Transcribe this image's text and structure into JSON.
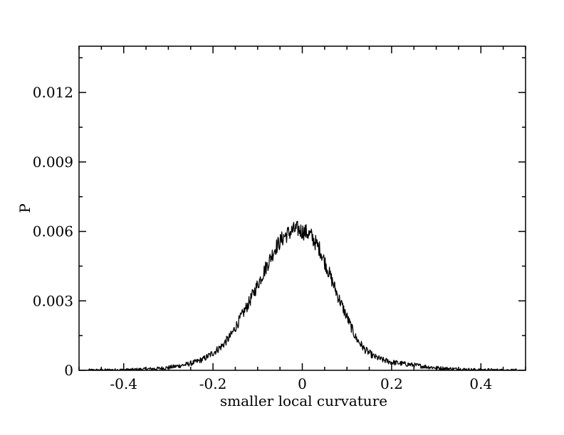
{
  "chart_data": {
    "type": "line",
    "title": "",
    "xlabel": "smaller local curvature",
    "ylabel": "P",
    "xlim": [
      -0.5,
      0.5
    ],
    "ylim": [
      0,
      0.014
    ],
    "xticks": [
      -0.4,
      -0.2,
      0,
      0.2,
      0.4
    ],
    "xtick_labels": [
      "-0.4",
      "-0.2",
      "0",
      "0.2",
      "0.4"
    ],
    "yticks": [
      0,
      0.003,
      0.006,
      0.009,
      0.012
    ],
    "ytick_labels": [
      "0",
      "0.003",
      "0.006",
      "0.009",
      "0.012"
    ],
    "grid": false,
    "legend": "none",
    "series": [
      {
        "color": "#000000",
        "x": [
          -0.48,
          -0.45,
          -0.42,
          -0.4,
          -0.38,
          -0.35,
          -0.32,
          -0.3,
          -0.28,
          -0.26,
          -0.24,
          -0.22,
          -0.2,
          -0.18,
          -0.16,
          -0.14,
          -0.12,
          -0.1,
          -0.08,
          -0.06,
          -0.04,
          -0.02,
          -0.01,
          0.0,
          0.01,
          0.02,
          0.04,
          0.06,
          0.08,
          0.1,
          0.12,
          0.14,
          0.16,
          0.18,
          0.2,
          0.22,
          0.24,
          0.26,
          0.28,
          0.3,
          0.32,
          0.35,
          0.38,
          0.4,
          0.42,
          0.45,
          0.48
        ],
        "y": [
          1e-05,
          1e-05,
          2e-05,
          2e-05,
          3e-05,
          5e-05,
          8e-05,
          0.00012,
          0.00018,
          0.00025,
          0.00035,
          0.0005,
          0.00075,
          0.00105,
          0.0015,
          0.0022,
          0.0029,
          0.0037,
          0.0045,
          0.0053,
          0.0058,
          0.00605,
          0.0061,
          0.006,
          0.00595,
          0.0058,
          0.0052,
          0.0042,
          0.0032,
          0.0023,
          0.0014,
          0.0009,
          0.0006,
          0.00045,
          0.00035,
          0.0003,
          0.00025,
          0.0002,
          0.00015,
          0.00011,
          8e-05,
          5e-05,
          3e-05,
          2e-05,
          2e-05,
          1e-05,
          1e-05
        ]
      }
    ]
  }
}
